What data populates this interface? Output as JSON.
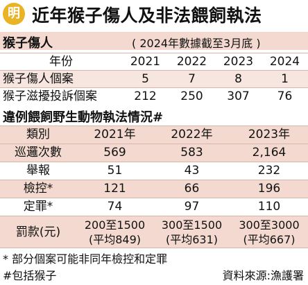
{
  "header": {
    "logo_char": "明",
    "headline": "近年猴子傷人及非法餵飼執法"
  },
  "section1": {
    "title": "猴子傷人",
    "note": "( 2024年數據截至3月底 )",
    "header_row": {
      "label": "年份",
      "years": [
        "2021",
        "2022",
        "2023",
        "2024"
      ]
    },
    "rows": [
      {
        "label": "猴子傷人個案",
        "values": [
          "5",
          "7",
          "8",
          "1"
        ]
      },
      {
        "label": "猴子滋擾投訴個案",
        "values": [
          "212",
          "250",
          "307",
          "76"
        ]
      }
    ]
  },
  "section2": {
    "title": "違例餵飼野生動物執法情況#",
    "header_row": {
      "label": "類別",
      "years": [
        "2021年",
        "2022年",
        "2023年"
      ]
    },
    "rows": [
      {
        "label": "巡邏次數",
        "values": [
          "569",
          "583",
          "2,164"
        ]
      },
      {
        "label": "舉報",
        "values": [
          "51",
          "43",
          "232"
        ]
      },
      {
        "label": "檢控*",
        "values": [
          "121",
          "66",
          "196"
        ]
      },
      {
        "label": "定罪*",
        "values": [
          "74",
          "97",
          "110"
        ]
      }
    ],
    "fine_row": {
      "label": "罰款(元)",
      "values": [
        {
          "range": "200至1500",
          "avg": "(平均849)"
        },
        {
          "range": "300至1500",
          "avg": "(平均631)"
        },
        {
          "range": "300至3000",
          "avg": "(平均667)"
        }
      ]
    }
  },
  "footer": {
    "note_asterisk": "* 部分個案可能非同年檢控和定罪",
    "note_hash": "#包括猴子",
    "source": "資料來源:漁護署"
  }
}
